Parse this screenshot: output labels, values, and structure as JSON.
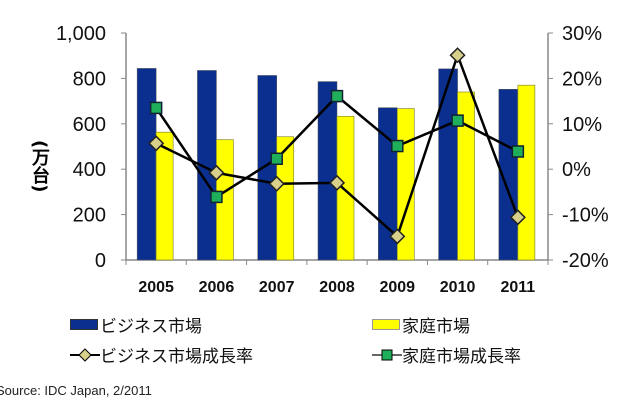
{
  "chart_data": {
    "type": "bar+line",
    "categories": [
      "2005",
      "2006",
      "2007",
      "2008",
      "2009",
      "2010",
      "2011"
    ],
    "ylabel": "(万台)",
    "ylim": [
      0,
      1000
    ],
    "yticks": [
      "0",
      "200",
      "400",
      "600",
      "800",
      "1,000"
    ],
    "y2lim": [
      -20,
      30
    ],
    "y2ticks": [
      "-20%",
      "-10%",
      "0%",
      "10%",
      "20%",
      "30%"
    ],
    "grid": false,
    "legend_position": "bottom",
    "series": [
      {
        "name": "ビジネス市場",
        "kind": "bar",
        "axis": "left",
        "color": "#0a2f8f",
        "values": [
          844,
          835,
          813,
          786,
          671,
          842,
          752
        ]
      },
      {
        "name": "家庭市場",
        "kind": "bar",
        "axis": "left",
        "color": "#ffff00",
        "values": [
          563,
          530,
          543,
          633,
          667,
          740,
          770
        ]
      },
      {
        "name": "ビジネス市場成長率",
        "kind": "line",
        "axis": "right",
        "marker": "diamond",
        "color": "#d8d08a",
        "values": [
          5.7,
          -0.8,
          -3.2,
          -3.0,
          -14.8,
          25.1,
          -10.6
        ]
      },
      {
        "name": "家庭市場成長率",
        "kind": "line",
        "axis": "right",
        "marker": "square",
        "color": "#1fae5a",
        "values": [
          13.5,
          -6.1,
          2.3,
          16.1,
          5.1,
          10.7,
          3.9
        ]
      }
    ]
  },
  "source": "Source: IDC Japan, 2/2011"
}
